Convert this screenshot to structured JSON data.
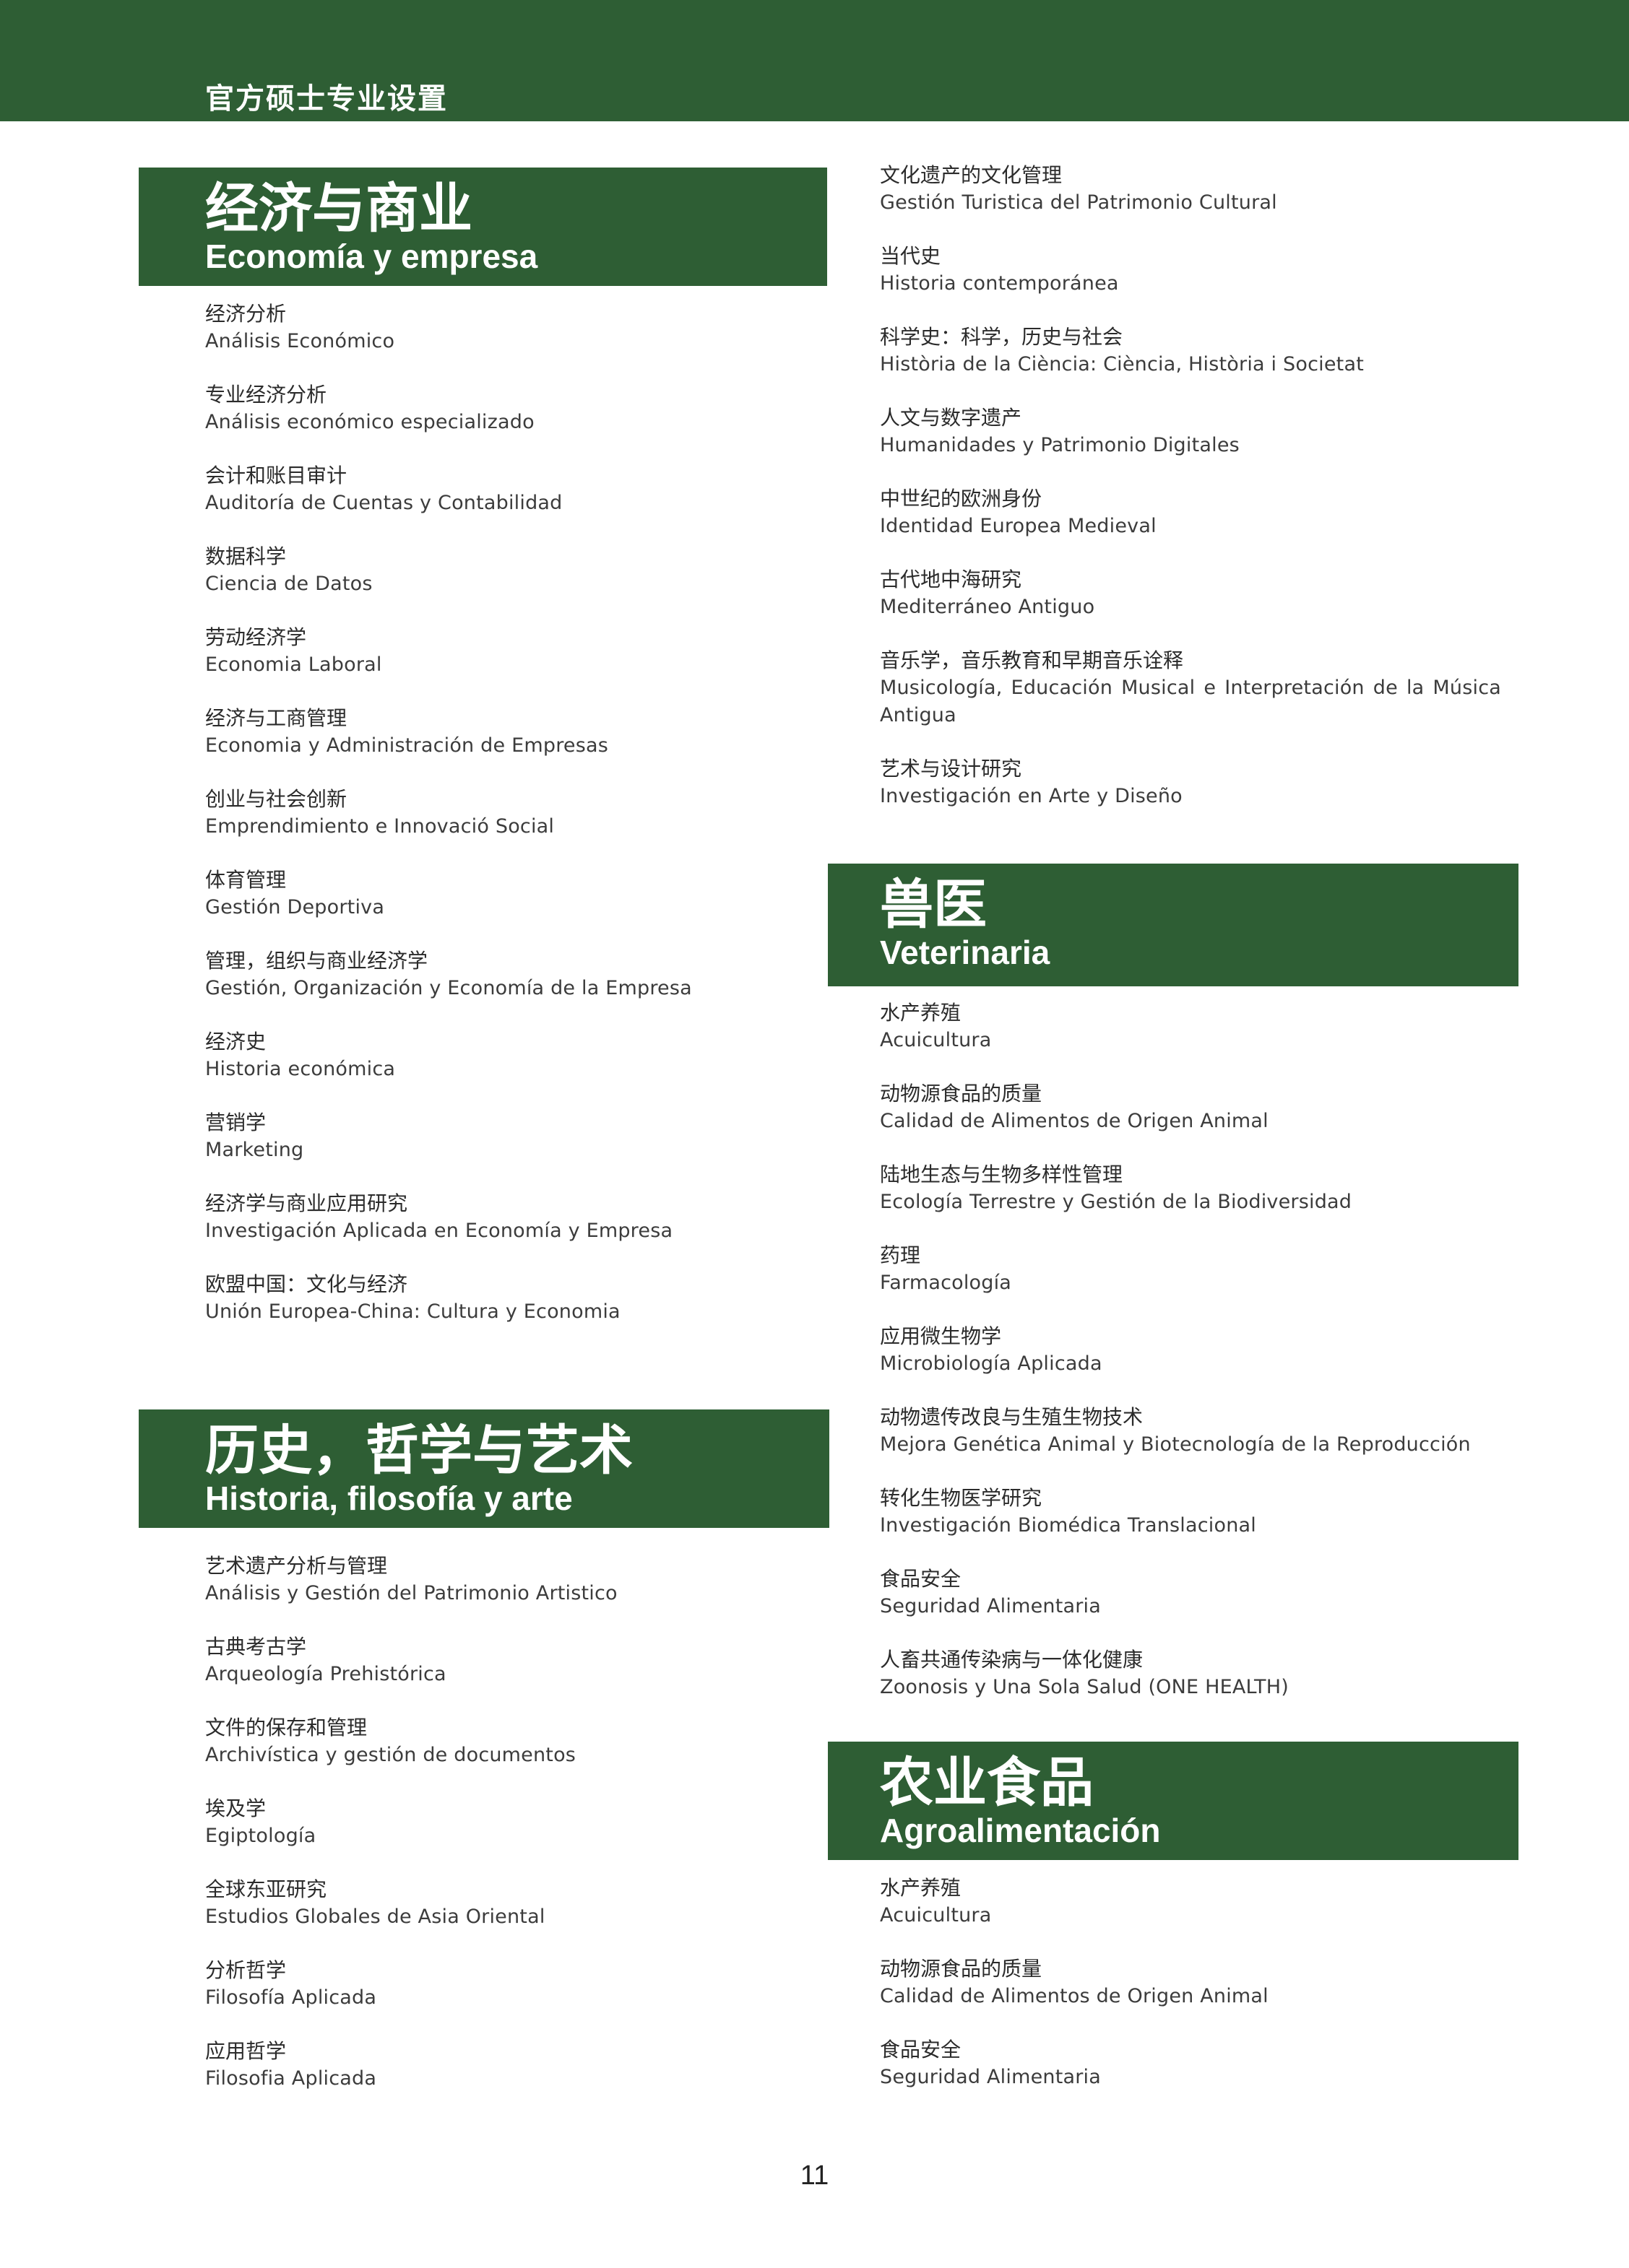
{
  "header": {
    "title": "官方硕士专业设置"
  },
  "sections": {
    "economia": {
      "title_zh": "经济与商业",
      "title_es": "Economía y empresa",
      "items": [
        {
          "zh": "经济分析",
          "es": "Análisis Económico"
        },
        {
          "zh": "专业经济分析",
          "es": "Análisis económico especializado"
        },
        {
          "zh": "会计和账目审计",
          "es": "Auditoría de Cuentas y Contabilidad"
        },
        {
          "zh": "数据科学",
          "es": "Ciencia de Datos"
        },
        {
          "zh": "劳动经济学",
          "es": "Economia Laboral"
        },
        {
          "zh": "经济与工商管理",
          "es": "Economia y Administración de Empresas"
        },
        {
          "zh": "创业与社会创新",
          "es": "Emprendimiento e Innovació Social"
        },
        {
          "zh": "体育管理",
          "es": "Gestión Deportiva"
        },
        {
          "zh": "管理，组织与商业经济学",
          "es": "Gestión, Organización y Economía de la Empresa"
        },
        {
          "zh": "经济史",
          "es": "Historia económica"
        },
        {
          "zh": "营销学",
          "es": "Marketing"
        },
        {
          "zh": "经济学与商业应用研究",
          "es": "Investigación Aplicada en Economía y Empresa"
        },
        {
          "zh": "欧盟中国：文化与经济",
          "es": "Unión Europea-China: Cultura y Economia"
        }
      ]
    },
    "historia": {
      "title_zh": "历史，哲学与艺术",
      "title_es": "Historia, filosofía y arte",
      "items": [
        {
          "zh": "艺术遗产分析与管理",
          "es": "Análisis y Gestión del Patrimonio Artistico"
        },
        {
          "zh": "古典考古学",
          "es": "Arqueología Prehistórica"
        },
        {
          "zh": "文件的保存和管理",
          "es": "Archivística y gestión de documentos"
        },
        {
          "zh": "埃及学",
          "es": "Egiptología"
        },
        {
          "zh": "全球东亚研究",
          "es": "Estudios Globales de Asia Oriental"
        },
        {
          "zh": "分析哲学",
          "es": "Filosofía Aplicada"
        },
        {
          "zh": "应用哲学",
          "es": "Filosofia Aplicada"
        }
      ],
      "items_continued": [
        {
          "zh": "文化遗产的文化管理",
          "es": "Gestión Turistica del Patrimonio Cultural"
        },
        {
          "zh": "当代史",
          "es": "Historia contemporánea"
        },
        {
          "zh": "科学史：科学，历史与社会",
          "es": "Història de la Ciència: Ciència, Història i Societat"
        },
        {
          "zh": "人文与数字遗产",
          "es": "Humanidades y Patrimonio Digitales"
        },
        {
          "zh": "中世纪的欧洲身份",
          "es": "Identidad Europea Medieval"
        },
        {
          "zh": "古代地中海研究",
          "es": "Mediterráneo Antiguo"
        },
        {
          "zh": "音乐学，音乐教育和早期音乐诠释",
          "es": "Musicología, Educación Musical e Interpretación de la Música Antigua"
        },
        {
          "zh": "艺术与设计研究",
          "es": "Investigación en Arte y Diseño"
        }
      ]
    },
    "veterinaria": {
      "title_zh": "兽医",
      "title_es": "Veterinaria",
      "items": [
        {
          "zh": "水产养殖",
          "es": "Acuicultura"
        },
        {
          "zh": "动物源食品的质量",
          "es": "Calidad de Alimentos de Origen Animal"
        },
        {
          "zh": "陆地生态与生物多样性管理",
          "es": "Ecología Terrestre y Gestión de la Biodiversidad"
        },
        {
          "zh": "药理",
          "es": "Farmacología"
        },
        {
          "zh": "应用微生物学",
          "es": "Microbiología Aplicada"
        },
        {
          "zh": "动物遗传改良与生殖生物技术",
          "es": "Mejora Genética Animal y Biotecnología de la Reproducción"
        },
        {
          "zh": "转化生物医学研究",
          "es": "Investigación Biomédica Translacional"
        },
        {
          "zh": "食品安全",
          "es": "Seguridad Alimentaria"
        },
        {
          "zh": "人畜共通传染病与一体化健康",
          "es": "Zoonosis y Una Sola Salud (ONE HEALTH)"
        }
      ]
    },
    "agro": {
      "title_zh": "农业食品",
      "title_es": "Agroalimentación",
      "items": [
        {
          "zh": "水产养殖",
          "es": "Acuicultura"
        },
        {
          "zh": "动物源食品的质量",
          "es": "Calidad de Alimentos de Origen Animal"
        },
        {
          "zh": "食品安全",
          "es": "Seguridad Alimentaria"
        }
      ]
    }
  },
  "footer": {
    "page_number": "11"
  }
}
